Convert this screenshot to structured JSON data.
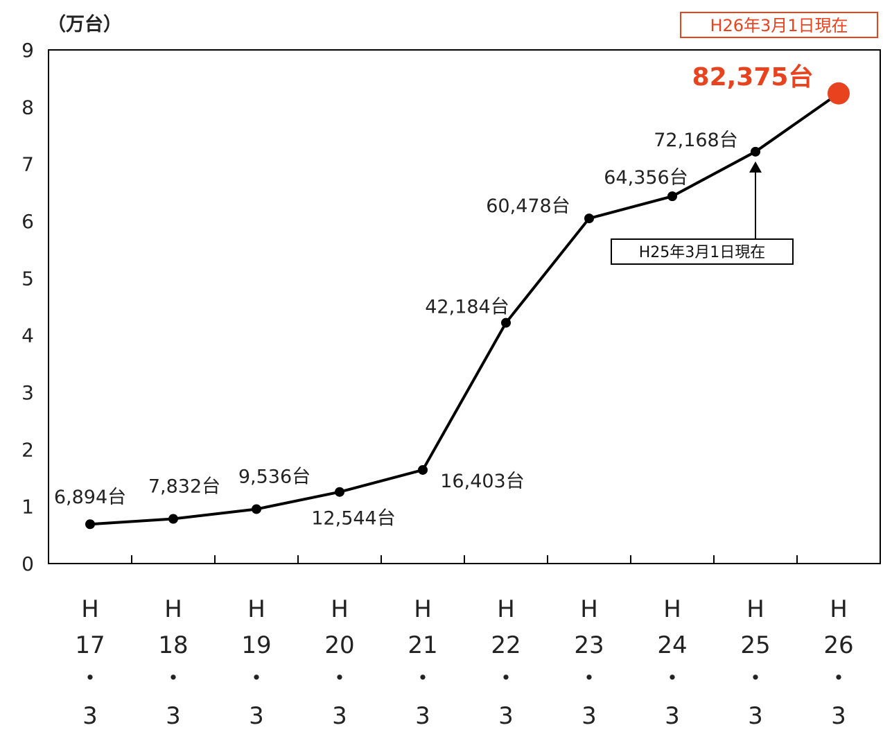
{
  "chart_data": {
    "type": "line",
    "unit_label": "（万台）",
    "categories": [
      [
        "H",
        "17",
        "・",
        "3"
      ],
      [
        "H",
        "18",
        "・",
        "3"
      ],
      [
        "H",
        "19",
        "・",
        "3"
      ],
      [
        "H",
        "20",
        "・",
        "3"
      ],
      [
        "H",
        "21",
        "・",
        "3"
      ],
      [
        "H",
        "22",
        "・",
        "3"
      ],
      [
        "H",
        "23",
        "・",
        "3"
      ],
      [
        "H",
        "24",
        "・",
        "3"
      ],
      [
        "H",
        "25",
        "・",
        "3"
      ],
      [
        "H",
        "26",
        "・",
        "3"
      ]
    ],
    "values": [
      0.6894,
      0.7832,
      0.9536,
      1.2544,
      1.6403,
      4.2184,
      6.0478,
      6.4356,
      7.2168,
      8.2375
    ],
    "data_labels": [
      "6,894台",
      "7,832台",
      "9,536台",
      "12,544台",
      "16,403台",
      "42,184台",
      "60,478台",
      "64,356台",
      "72,168台",
      "82,375台"
    ],
    "ylim": [
      0,
      9
    ],
    "yticks": [
      "0",
      "1",
      "2",
      "3",
      "4",
      "5",
      "6",
      "7",
      "8",
      "9"
    ],
    "highlight_index": 9,
    "highlight_color": "#e8431f",
    "line_color": "#000000",
    "date_badge": "H26年3月1日現在",
    "annotation": {
      "text": "H25年3月1日現在",
      "target_index": 8
    }
  }
}
